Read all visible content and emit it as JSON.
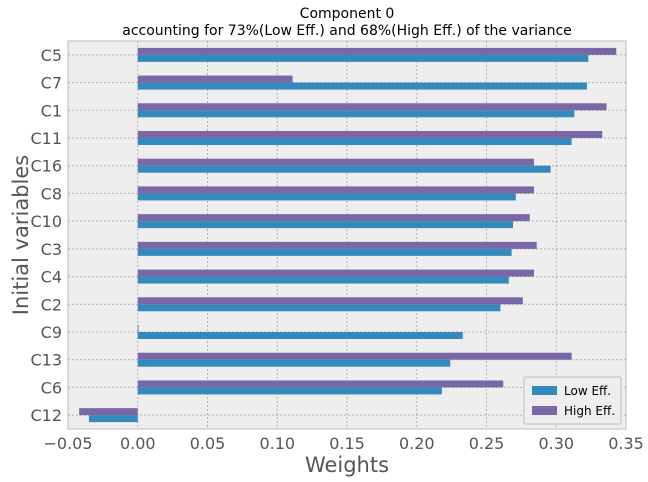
{
  "chart_data": {
    "type": "bar",
    "orientation": "horizontal",
    "title_line1": "Component 0",
    "title_line2": "accounting for 73%(Low Eff.) and 68%(High Eff.) of the variance",
    "xlabel": "Weights",
    "ylabel": "Initial variables",
    "xlim": [
      -0.05,
      0.35
    ],
    "xticks": [
      -0.05,
      0.0,
      0.05,
      0.1,
      0.15,
      0.2,
      0.25,
      0.3,
      0.35
    ],
    "xtick_labels": [
      "−0.05",
      "0.00",
      "0.05",
      "0.10",
      "0.15",
      "0.20",
      "0.25",
      "0.30",
      "0.35"
    ],
    "grid": true,
    "legend_position": "bottom-right",
    "categories": [
      "C5",
      "C7",
      "C1",
      "C11",
      "C16",
      "C8",
      "C10",
      "C3",
      "C4",
      "C2",
      "C9",
      "C13",
      "C6",
      "C12"
    ],
    "series": [
      {
        "name": "Low Eff.",
        "color": "#348ABD",
        "values": [
          0.323,
          0.322,
          0.313,
          0.311,
          0.296,
          0.271,
          0.269,
          0.268,
          0.266,
          0.26,
          0.233,
          0.224,
          0.218,
          -0.035
        ]
      },
      {
        "name": "High Eff.",
        "color": "#7A68A6",
        "values": [
          0.343,
          0.111,
          0.336,
          0.333,
          0.284,
          0.284,
          0.281,
          0.286,
          0.284,
          0.276,
          0.0,
          0.311,
          0.262,
          -0.042
        ]
      }
    ]
  }
}
